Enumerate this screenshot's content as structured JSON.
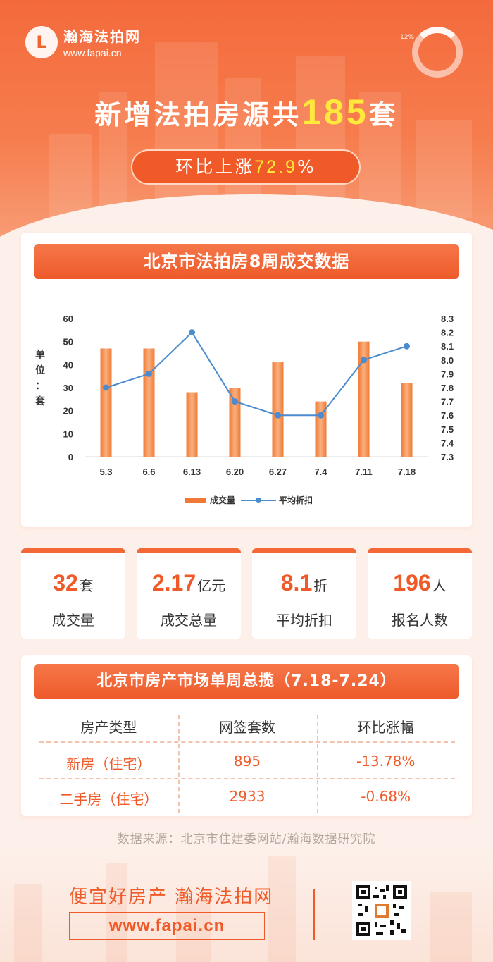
{
  "brand": {
    "name": "瀚海法拍网",
    "url": "www.fapai.cn",
    "logo_glyph": "L"
  },
  "header": {
    "gauge_label": "12%",
    "headline_prefix": "新增法拍房源共",
    "headline_number": "185",
    "headline_suffix": "套",
    "pill_prefix": "环比上涨",
    "pill_value": "72.9",
    "pill_suffix": "%"
  },
  "chart_section": {
    "title": "北京市法拍房8周成交数据"
  },
  "chart_data": {
    "type": "bar",
    "categories": [
      "5.3",
      "6.6",
      "6.13",
      "6.20",
      "6.27",
      "7.4",
      "7.11",
      "7.18"
    ],
    "series": [
      {
        "name": "成交量",
        "type": "bar",
        "axis": "left",
        "values": [
          47,
          47,
          28,
          30,
          41,
          24,
          50,
          32
        ]
      },
      {
        "name": "平均折扣",
        "type": "line",
        "axis": "right",
        "values": [
          7.8,
          7.9,
          8.2,
          7.7,
          7.6,
          7.6,
          8.0,
          8.1
        ]
      }
    ],
    "ylabel": "单位：套",
    "ylim": [
      0,
      60
    ],
    "yticks": [
      0,
      10,
      20,
      30,
      40,
      50,
      60
    ],
    "y2lim": [
      7.3,
      8.3
    ],
    "y2ticks": [
      7.3,
      7.4,
      7.5,
      7.6,
      7.7,
      7.8,
      7.9,
      8.0,
      8.1,
      8.2,
      8.3
    ],
    "grid": false,
    "legend": "bottom-center",
    "bar_color": "#f07a35",
    "line_color": "#4a8ccf"
  },
  "stats": [
    {
      "value": "32",
      "unit": "套",
      "label": "成交量"
    },
    {
      "value": "2.17",
      "unit": "亿元",
      "label": "成交总量"
    },
    {
      "value": "8.1",
      "unit": "折",
      "label": "平均折扣"
    },
    {
      "value": "196",
      "unit": "人",
      "label": "报名人数"
    }
  ],
  "table_section": {
    "title": "北京市房产市场单周总揽（7.18-7.24）",
    "headers": [
      "房产类型",
      "网签套数",
      "环比涨幅"
    ],
    "rows": [
      [
        "新房（住宅）",
        "895",
        "-13.78%"
      ],
      [
        "二手房（住宅）",
        "2933",
        "-0.68%"
      ]
    ]
  },
  "source": "数据来源：北京市住建委网站/瀚海数据研究院",
  "footer": {
    "slogan": "便宜好房产 瀚海法拍网",
    "url": "www.fapai.cn"
  },
  "colors": {
    "accent": "#ef5a28",
    "highlight": "#ffe93a"
  }
}
